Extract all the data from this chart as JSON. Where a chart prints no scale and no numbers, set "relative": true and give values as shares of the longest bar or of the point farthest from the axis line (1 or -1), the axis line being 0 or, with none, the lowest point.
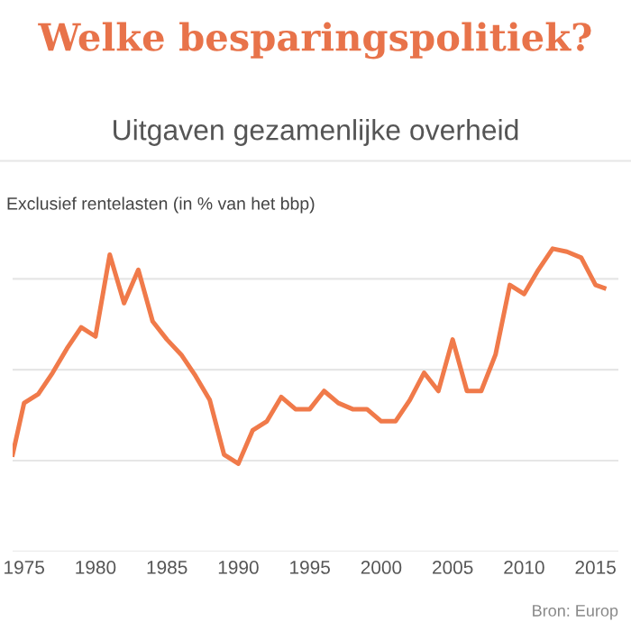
{
  "chart_data": {
    "type": "line",
    "title": "Welke besparingspolitiek?",
    "subtitle": "Uitgaven gezamenlijke overheid",
    "ylabel": "Exclusief rentelasten (in % van het bbp)",
    "relative": true,
    "x": [
      1974.2,
      1975,
      1976,
      1977,
      1978,
      1979,
      1980,
      1981,
      1982,
      1983,
      1984,
      1985,
      1986,
      1987,
      1988,
      1989,
      1990,
      1991,
      1992,
      1993,
      1994,
      1995,
      1996,
      1997,
      1998,
      1999,
      2000,
      2001,
      2002,
      2003,
      2004,
      2005,
      2006,
      2007,
      2008,
      2009,
      2010,
      2011,
      2012,
      2013,
      2014,
      2015,
      2015.6
    ],
    "series": [
      {
        "color": "#f07a4a",
        "values": [
          0.32,
          0.49,
          0.52,
          0.59,
          0.67,
          0.74,
          0.71,
          0.98,
          0.82,
          0.93,
          0.76,
          0.7,
          0.65,
          0.58,
          0.5,
          0.32,
          0.29,
          0.4,
          0.43,
          0.51,
          0.47,
          0.47,
          0.53,
          0.49,
          0.47,
          0.47,
          0.43,
          0.43,
          0.5,
          0.59,
          0.53,
          0.7,
          0.53,
          0.53,
          0.65,
          0.88,
          0.85,
          0.93,
          1.0,
          0.99,
          0.97,
          0.88,
          0.87
        ]
      }
    ],
    "xlim": [
      1974.2,
      2016.6
    ],
    "xticks": [
      1975,
      1980,
      1985,
      1990,
      1995,
      2000,
      2005,
      2010,
      2015
    ],
    "grid": "y",
    "annotations": [
      "Bron: Europ"
    ]
  }
}
